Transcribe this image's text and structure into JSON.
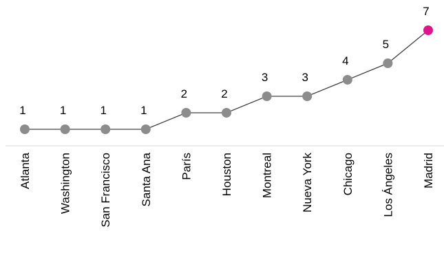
{
  "chart_data": {
    "type": "line",
    "categories": [
      "Atlanta",
      "Washington",
      "San Francisco",
      "Santa Ana",
      "París",
      "Houston",
      "Montreal",
      "Nueva York",
      "Chicago",
      "Los Ángeles",
      "Madrid"
    ],
    "values": [
      1,
      1,
      1,
      1,
      2,
      2,
      3,
      3,
      4,
      5,
      7
    ],
    "title": "",
    "xlabel": "",
    "ylabel": "",
    "ylim": [
      0,
      7
    ],
    "grid": false,
    "legend": "none",
    "highlight_category": "Madrid",
    "colors": {
      "line": "#404040",
      "marker": "#8c8c8c",
      "highlight": "#e0158c",
      "axis": "#d9d9d9"
    }
  }
}
